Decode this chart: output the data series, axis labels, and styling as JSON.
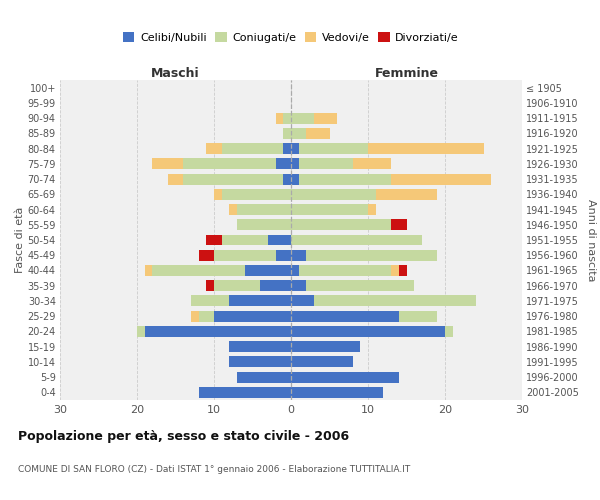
{
  "age_groups": [
    "0-4",
    "5-9",
    "10-14",
    "15-19",
    "20-24",
    "25-29",
    "30-34",
    "35-39",
    "40-44",
    "45-49",
    "50-54",
    "55-59",
    "60-64",
    "65-69",
    "70-74",
    "75-79",
    "80-84",
    "85-89",
    "90-94",
    "95-99",
    "100+"
  ],
  "birth_years": [
    "2001-2005",
    "1996-2000",
    "1991-1995",
    "1986-1990",
    "1981-1985",
    "1976-1980",
    "1971-1975",
    "1966-1970",
    "1961-1965",
    "1956-1960",
    "1951-1955",
    "1946-1950",
    "1941-1945",
    "1936-1940",
    "1931-1935",
    "1926-1930",
    "1921-1925",
    "1916-1920",
    "1911-1915",
    "1906-1910",
    "≤ 1905"
  ],
  "colors": {
    "celibi": "#4472c4",
    "coniugati": "#c5d9a0",
    "vedovi": "#f5c878",
    "divorziati": "#cc1111"
  },
  "maschi": {
    "celibi": [
      12,
      7,
      8,
      8,
      19,
      10,
      8,
      4,
      6,
      2,
      3,
      0,
      0,
      0,
      1,
      2,
      1,
      0,
      0,
      0,
      0
    ],
    "coniugati": [
      0,
      0,
      0,
      0,
      1,
      2,
      5,
      6,
      12,
      8,
      6,
      7,
      7,
      9,
      13,
      12,
      8,
      1,
      1,
      0,
      0
    ],
    "vedovi": [
      0,
      0,
      0,
      0,
      0,
      1,
      0,
      0,
      1,
      0,
      0,
      0,
      1,
      1,
      2,
      4,
      2,
      0,
      1,
      0,
      0
    ],
    "divorziati": [
      0,
      0,
      0,
      0,
      0,
      0,
      0,
      1,
      0,
      2,
      2,
      0,
      0,
      0,
      0,
      0,
      0,
      0,
      0,
      0,
      0
    ]
  },
  "femmine": {
    "celibi": [
      12,
      14,
      8,
      9,
      20,
      14,
      3,
      2,
      1,
      2,
      0,
      0,
      0,
      0,
      1,
      1,
      1,
      0,
      0,
      0,
      0
    ],
    "coniugati": [
      0,
      0,
      0,
      0,
      1,
      5,
      21,
      14,
      12,
      17,
      17,
      13,
      10,
      11,
      12,
      7,
      9,
      2,
      3,
      0,
      0
    ],
    "vedovi": [
      0,
      0,
      0,
      0,
      0,
      0,
      0,
      0,
      1,
      0,
      0,
      0,
      1,
      8,
      13,
      5,
      15,
      3,
      3,
      0,
      0
    ],
    "divorziati": [
      0,
      0,
      0,
      0,
      0,
      0,
      0,
      0,
      1,
      0,
      0,
      2,
      0,
      0,
      0,
      0,
      0,
      0,
      0,
      0,
      0
    ]
  },
  "xlim": 30,
  "title": "Popolazione per età, sesso e stato civile - 2006",
  "subtitle": "COMUNE DI SAN FLORO (CZ) - Dati ISTAT 1° gennaio 2006 - Elaborazione TUTTITALIA.IT",
  "xlabel_left": "Maschi",
  "xlabel_right": "Femmine",
  "ylabel_left": "Fasce di età",
  "ylabel_right": "Anni di nascita",
  "legend_labels": [
    "Celibi/Nubili",
    "Coniugati/e",
    "Vedovi/e",
    "Divorziati/e"
  ],
  "bg_color": "#ffffff",
  "plot_bg": "#f0f0f0",
  "grid_color": "#cccccc"
}
